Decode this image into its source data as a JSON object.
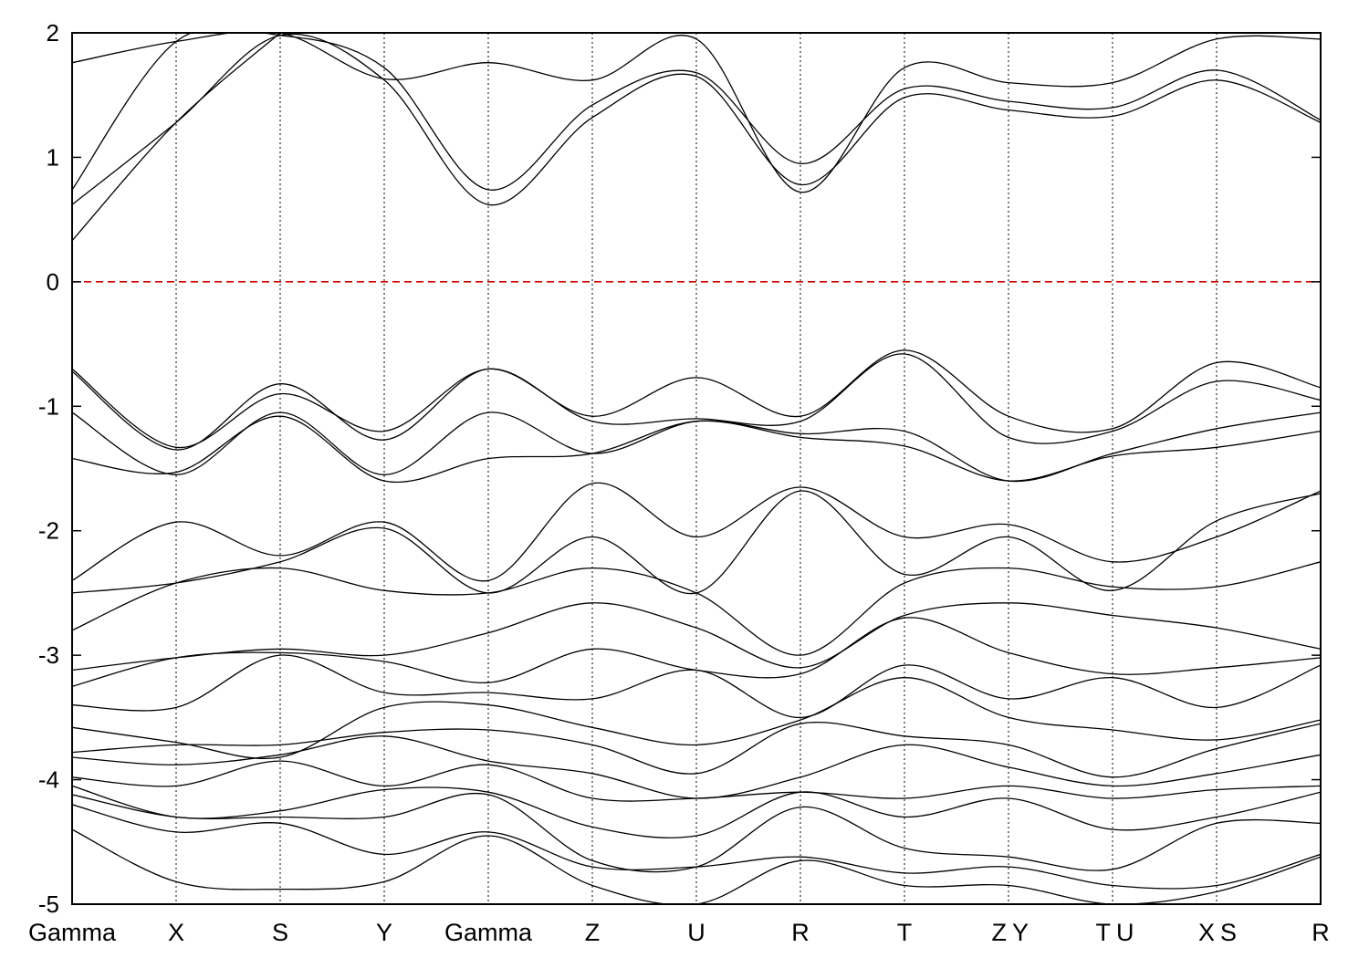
{
  "chart_data": {
    "type": "line",
    "title": "",
    "xlabel": "",
    "ylabel": "",
    "ylim": [
      -5,
      2
    ],
    "yticks": [
      2,
      1,
      0,
      -1,
      -2,
      -3,
      -4,
      -5
    ],
    "ytick_labels": [
      "2",
      "1",
      "0",
      "-1",
      "-2",
      "-3",
      "-4",
      "-5"
    ],
    "kpath": [
      {
        "label": "Gamma",
        "x": 0.0
      },
      {
        "label": "X",
        "x": 1.0
      },
      {
        "label": "S",
        "x": 2.0
      },
      {
        "label": "Y",
        "x": 3.0
      },
      {
        "label": "Gamma",
        "x": 4.0
      },
      {
        "label": "Z",
        "x": 5.0
      },
      {
        "label": "U",
        "x": 6.0
      },
      {
        "label": "R",
        "x": 7.0
      },
      {
        "label": "T",
        "x": 8.0
      },
      {
        "label": "Z",
        "x": 9.0
      },
      {
        "label": "Y",
        "x": 9.0
      },
      {
        "label": "T",
        "x": 10.0
      },
      {
        "label": "U",
        "x": 10.0
      },
      {
        "label": "X",
        "x": 11.0
      },
      {
        "label": "S",
        "x": 11.0
      },
      {
        "label": "R",
        "x": 12.0
      }
    ],
    "fermi_level": 0,
    "colors": {
      "bands": "#000000",
      "fermi": "#cc0000",
      "kline": "#000000"
    },
    "grid": "vertical dotted lines at k-points",
    "series": [
      {
        "values": [
          0.33,
          1.28,
          2.0,
          null,
          0.33,
          null,
          null,
          null,
          null,
          null,
          null,
          null,
          null
        ]
      },
      {
        "values": [
          0.62,
          1.28,
          1.98,
          1.62,
          0.62,
          1.32,
          1.65,
          0.78,
          1.48,
          1.38,
          1.33,
          1.62,
          1.28
        ]
      },
      {
        "values": [
          0.74,
          1.93,
          1.98,
          1.72,
          0.74,
          1.42,
          1.68,
          0.95,
          1.55,
          1.45,
          1.4,
          1.7,
          1.3
        ]
      },
      {
        "values": [
          1.76,
          1.93,
          2.0,
          1.63,
          1.76,
          1.62,
          1.95,
          0.72,
          1.72,
          1.6,
          1.6,
          1.95,
          1.95
        ]
      },
      {
        "values": [
          -0.7,
          -1.33,
          -0.9,
          -1.2,
          -0.7,
          -1.08,
          -0.77,
          -1.08,
          -0.55,
          -1.08,
          -1.18,
          -0.65,
          -0.85
        ]
      },
      {
        "values": [
          -0.72,
          -1.35,
          -0.82,
          -1.27,
          -0.7,
          -1.12,
          -1.1,
          -1.12,
          -0.58,
          -1.25,
          -1.2,
          -0.8,
          -0.95
        ]
      },
      {
        "values": [
          -1.05,
          -1.55,
          -1.05,
          -1.55,
          -1.05,
          -1.38,
          -1.12,
          -1.22,
          -1.2,
          -1.6,
          -1.38,
          -1.18,
          -1.05
        ]
      },
      {
        "values": [
          -1.42,
          -1.53,
          -1.08,
          -1.6,
          -1.42,
          -1.38,
          -1.12,
          -1.25,
          -1.32,
          -1.6,
          -1.4,
          -1.33,
          -1.2
        ]
      },
      {
        "values": [
          -2.4,
          -1.93,
          -2.2,
          -1.93,
          -2.4,
          -1.62,
          -2.05,
          -1.65,
          -2.05,
          -1.95,
          -2.25,
          -2.05,
          -1.68
        ]
      },
      {
        "values": [
          -2.5,
          -2.42,
          -2.25,
          -1.98,
          -2.5,
          -2.05,
          -2.5,
          -1.68,
          -2.35,
          -2.05,
          -2.48,
          -1.92,
          -1.7
        ]
      },
      {
        "values": [
          -2.8,
          -2.42,
          -2.3,
          -2.48,
          -2.5,
          -2.3,
          -2.5,
          -3.0,
          -2.42,
          -2.3,
          -2.45,
          -2.45,
          -2.25
        ]
      },
      {
        "values": [
          -3.12,
          -3.02,
          -2.95,
          -3.0,
          -2.82,
          -2.58,
          -2.78,
          -3.1,
          -2.68,
          -2.58,
          -2.68,
          -2.78,
          -2.95
        ]
      },
      {
        "values": [
          -3.25,
          -3.02,
          -2.98,
          -3.05,
          -3.22,
          -2.95,
          -3.12,
          -3.15,
          -2.7,
          -2.98,
          -3.15,
          -3.1,
          -3.02
        ]
      },
      {
        "values": [
          -3.4,
          -3.42,
          -3.0,
          -3.3,
          -3.3,
          -3.35,
          -3.12,
          -3.5,
          -3.08,
          -3.35,
          -3.18,
          -3.42,
          -3.08
        ]
      },
      {
        "values": [
          -3.58,
          -3.7,
          -3.82,
          -3.42,
          -3.4,
          -3.58,
          -3.72,
          -3.52,
          -3.18,
          -3.5,
          -3.6,
          -3.68,
          -3.52
        ]
      },
      {
        "values": [
          -3.78,
          -3.72,
          -3.72,
          -3.62,
          -3.6,
          -3.72,
          -3.95,
          -3.55,
          -3.65,
          -3.72,
          -3.98,
          -3.75,
          -3.55
        ]
      },
      {
        "values": [
          -3.82,
          -3.88,
          -3.8,
          -3.65,
          -3.85,
          -3.95,
          -4.15,
          -3.98,
          -3.72,
          -3.9,
          -4.05,
          -3.95,
          -3.8
        ]
      },
      {
        "values": [
          -3.98,
          -4.05,
          -3.85,
          -4.05,
          -3.88,
          -4.15,
          -4.15,
          -4.1,
          -4.15,
          -4.05,
          -4.15,
          -4.08,
          -4.05
        ]
      },
      {
        "values": [
          -4.05,
          -4.3,
          -4.25,
          -4.08,
          -4.1,
          -4.38,
          -4.45,
          -4.1,
          -4.3,
          -4.15,
          -4.4,
          -4.3,
          -4.1
        ]
      },
      {
        "values": [
          -4.12,
          -4.3,
          -4.3,
          -4.3,
          -4.12,
          -4.65,
          -4.7,
          -4.22,
          -4.55,
          -4.62,
          -4.72,
          -4.35,
          -4.35
        ]
      },
      {
        "values": [
          -4.2,
          -4.42,
          -4.35,
          -4.6,
          -4.42,
          -4.7,
          -4.7,
          -4.62,
          -4.75,
          -4.7,
          -4.85,
          -4.85,
          -4.6
        ]
      },
      {
        "values": [
          -4.4,
          -4.82,
          -4.88,
          -4.82,
          -4.45,
          -4.85,
          -5.0,
          -4.65,
          -4.85,
          -4.85,
          -5.0,
          -4.9,
          -4.62
        ]
      }
    ]
  }
}
